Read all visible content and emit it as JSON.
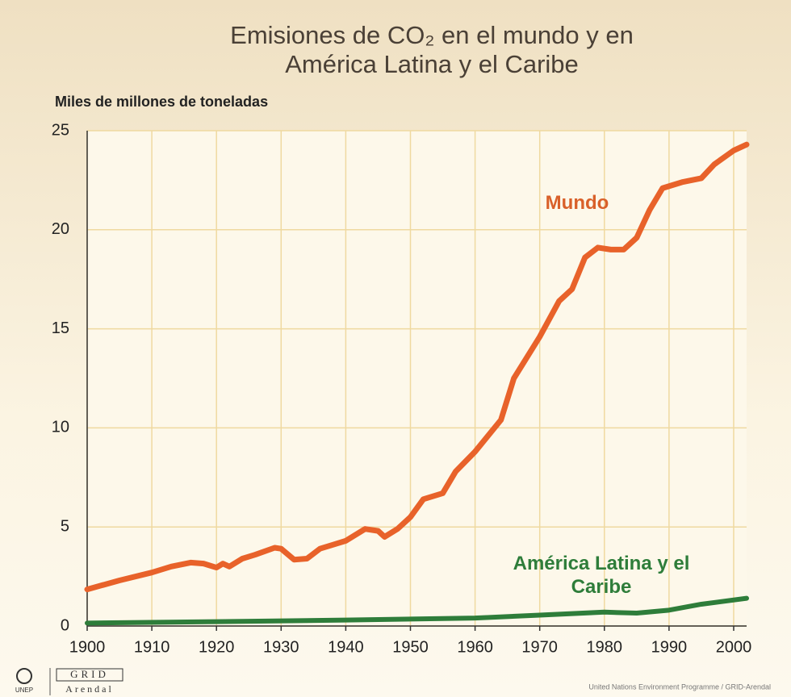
{
  "chart_data": {
    "type": "line",
    "title": [
      "Emisiones de CO₂ en el mundo y en",
      "América Latina y el Caribe"
    ],
    "y_label": "Miles de millones de toneladas",
    "xlim": [
      1900,
      2002
    ],
    "xticks": [
      1900,
      1910,
      1920,
      1930,
      1940,
      1950,
      1960,
      1970,
      1980,
      1990,
      2000
    ],
    "ylim": [
      0,
      25
    ],
    "yticks": [
      0,
      5,
      10,
      15,
      20,
      25
    ],
    "grid": true,
    "series": [
      {
        "name": "Mundo",
        "color": "#e8622a",
        "x": [
          1900,
          1905,
          1910,
          1913,
          1916,
          1918,
          1920,
          1921,
          1922,
          1924,
          1926,
          1929,
          1930,
          1932,
          1934,
          1936,
          1938,
          1940,
          1943,
          1945,
          1946,
          1948,
          1950,
          1952,
          1955,
          1957,
          1960,
          1964,
          1966,
          1970,
          1973,
          1975,
          1977,
          1979,
          1981,
          1983,
          1985,
          1987,
          1989,
          1992,
          1995,
          1997,
          2000,
          2002
        ],
        "values": [
          1.85,
          2.3,
          2.7,
          3.0,
          3.2,
          3.15,
          2.95,
          3.15,
          3.0,
          3.4,
          3.6,
          3.95,
          3.9,
          3.35,
          3.4,
          3.9,
          4.1,
          4.3,
          4.9,
          4.8,
          4.5,
          4.9,
          5.5,
          6.4,
          6.7,
          7.8,
          8.8,
          10.4,
          12.5,
          14.6,
          16.4,
          17.0,
          18.6,
          19.1,
          19.0,
          19.0,
          19.6,
          21.0,
          22.1,
          22.4,
          22.6,
          23.3,
          24.0,
          24.3
        ]
      },
      {
        "name": "América Latina y el Caribe",
        "color": "#2e7d3a",
        "x": [
          1900,
          1920,
          1940,
          1960,
          1970,
          1980,
          1985,
          1990,
          1995,
          2002
        ],
        "values": [
          0.15,
          0.22,
          0.3,
          0.4,
          0.55,
          0.7,
          0.65,
          0.8,
          1.1,
          1.4
        ]
      }
    ],
    "footer": {
      "logo_unep": "UNEP",
      "logo_grid": "GRID",
      "logo_arendal": "Arendal",
      "credit": "United Nations Environment Programme / GRID-Arendal"
    }
  }
}
